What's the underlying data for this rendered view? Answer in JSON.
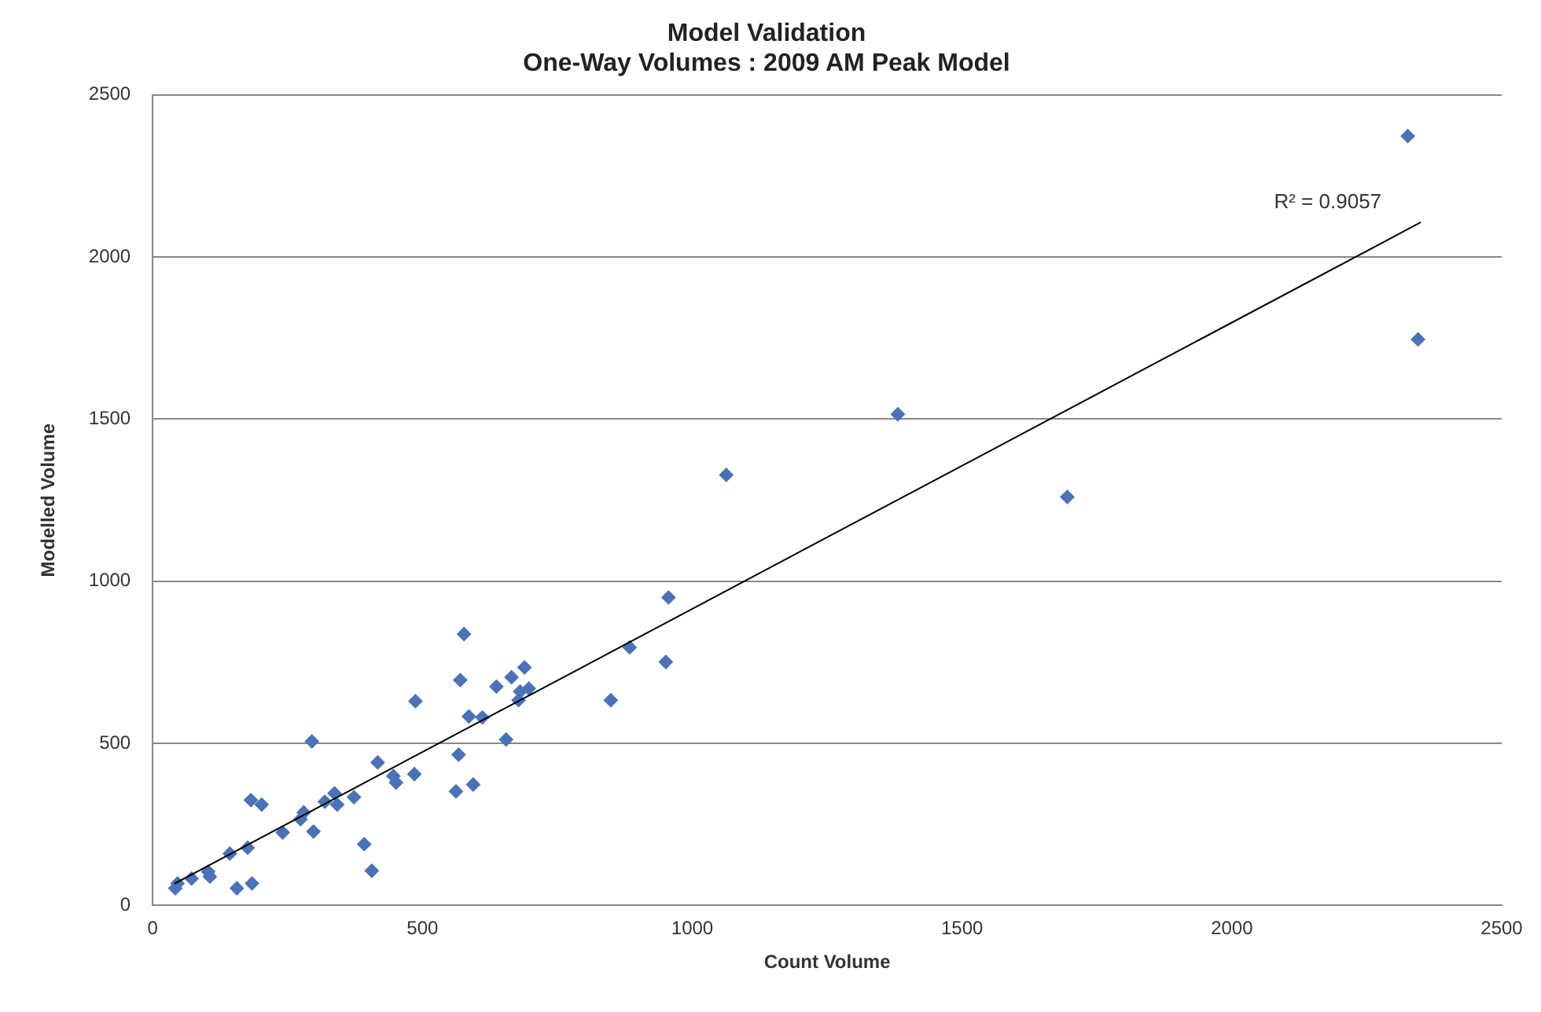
{
  "chart_data": {
    "type": "scatter",
    "title": "Model Validation",
    "subtitle": "One-Way Volumes : 2009 AM Peak Model",
    "xlabel": "Count Volume",
    "ylabel": "Modelled Volume",
    "xlim": [
      0,
      2500
    ],
    "xticks": [
      0,
      500,
      1000,
      1500,
      2000,
      2500
    ],
    "ylim": [
      0,
      2500
    ],
    "yticks": [
      0,
      500,
      1000,
      1500,
      2000,
      2500
    ],
    "grid": "y",
    "legend": false,
    "series": [
      {
        "type": "scatter",
        "marker": "diamond",
        "color": "#4a72b8",
        "x": [
          2326,
          2345,
          1381,
          1695,
          1063,
          956,
          951,
          884,
          849,
          577,
          570,
          567,
          562,
          594,
          487,
          485,
          637,
          665,
          689,
          681,
          697,
          678,
          586,
          611,
          655,
          295,
          417,
          446,
          451,
          373,
          337,
          342,
          319,
          280,
          274,
          182,
          202,
          298,
          241,
          392,
          406,
          176,
          143,
          184,
          156,
          103,
          106,
          72,
          46,
          42
        ],
        "values": [
          2373,
          1746,
          1515,
          1260,
          1328,
          950,
          751,
          796,
          633,
          837,
          695,
          465,
          352,
          373,
          630,
          405,
          675,
          704,
          734,
          660,
          669,
          633,
          583,
          580,
          512,
          506,
          441,
          399,
          379,
          334,
          346,
          311,
          320,
          287,
          266,
          325,
          311,
          228,
          225,
          189,
          107,
          178,
          160,
          68,
          53,
          104,
          89,
          83,
          68,
          53
        ]
      },
      {
        "type": "line",
        "marker": "none",
        "color": "#000000",
        "x": [
          40,
          2350
        ],
        "values": [
          67,
          2107
        ]
      }
    ],
    "annotations": [
      {
        "text": "R² = 0.9057",
        "x": 2350,
        "y": 2107
      }
    ]
  }
}
